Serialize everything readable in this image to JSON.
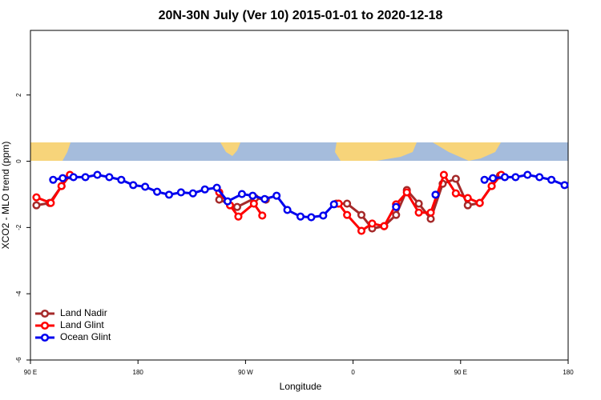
{
  "chart_data": {
    "type": "line",
    "title": "20N-30N July (Ver 10)   2015-01-01 to 2020-12-18",
    "x_label": "Longitude",
    "y_label": "XCO2 - MLO trend (ppm)",
    "xlim": [
      90,
      540
    ],
    "xticks": [
      {
        "value": 90,
        "label": "90 E"
      },
      {
        "value": 180,
        "label": "180"
      },
      {
        "value": 270,
        "label": "90 W"
      },
      {
        "value": 360,
        "label": "0"
      },
      {
        "value": 450,
        "label": "90 E"
      },
      {
        "value": 540,
        "label": "180"
      }
    ],
    "ylim": [
      -6,
      3.95
    ],
    "yticks": [
      2,
      0,
      -2,
      -4,
      -6
    ],
    "legend": "bottom-left",
    "series": [
      {
        "name": "Land Nadir",
        "color": "#a52a2a",
        "x": [
          95,
          106,
          116,
          123,
          null,
          248,
          263,
          278,
          287,
          null,
          346,
          355,
          367,
          376,
          386,
          396,
          405,
          415,
          425,
          435,
          446,
          456,
          466,
          476,
          483
        ],
        "values": [
          -1.33,
          -1.26,
          -0.75,
          -0.43,
          null,
          -1.16,
          -1.38,
          -1.11,
          -1.16,
          null,
          -1.28,
          -1.28,
          -1.62,
          -2.03,
          -1.96,
          -1.62,
          -0.87,
          -1.28,
          -1.74,
          -0.68,
          -0.53,
          -1.33,
          -1.26,
          -0.75,
          -0.43
        ]
      },
      {
        "name": "Land Glint",
        "color": "#ff0000",
        "x": [
          95,
          107,
          116,
          123,
          null,
          248,
          257,
          264,
          277,
          284,
          null,
          348,
          355,
          367,
          376,
          386,
          396,
          405,
          415,
          425,
          436,
          446,
          456,
          466,
          476,
          484
        ],
        "values": [
          -1.09,
          -1.26,
          -0.75,
          -0.41,
          null,
          -0.94,
          -1.33,
          -1.67,
          -1.28,
          -1.64,
          null,
          -1.28,
          -1.62,
          -2.1,
          -1.88,
          -1.96,
          -1.3,
          -0.94,
          -1.55,
          -1.55,
          -0.41,
          -0.97,
          -1.11,
          -1.26,
          -0.75,
          -0.41
        ]
      },
      {
        "name": "Ocean Glint",
        "color": "#0000ee",
        "x": [
          109,
          117,
          126,
          136,
          146,
          156,
          166,
          176,
          186,
          196,
          206,
          216,
          226,
          236,
          246,
          255,
          267,
          276,
          286,
          296,
          305,
          316,
          325,
          335,
          344,
          null,
          396,
          null,
          429,
          null,
          470,
          477,
          487,
          496,
          506,
          516,
          526,
          537
        ],
        "values": [
          -0.56,
          -0.51,
          -0.48,
          -0.48,
          -0.41,
          -0.48,
          -0.56,
          -0.72,
          -0.77,
          -0.92,
          -1.01,
          -0.94,
          -0.97,
          -0.85,
          -0.8,
          -1.21,
          -0.99,
          -1.04,
          -1.14,
          -1.04,
          -1.47,
          -1.67,
          -1.69,
          -1.64,
          -1.3,
          null,
          -1.38,
          null,
          -1.01,
          null,
          -0.56,
          -0.51,
          -0.48,
          -0.48,
          -0.41,
          -0.48,
          -0.56,
          -0.72
        ]
      }
    ]
  }
}
